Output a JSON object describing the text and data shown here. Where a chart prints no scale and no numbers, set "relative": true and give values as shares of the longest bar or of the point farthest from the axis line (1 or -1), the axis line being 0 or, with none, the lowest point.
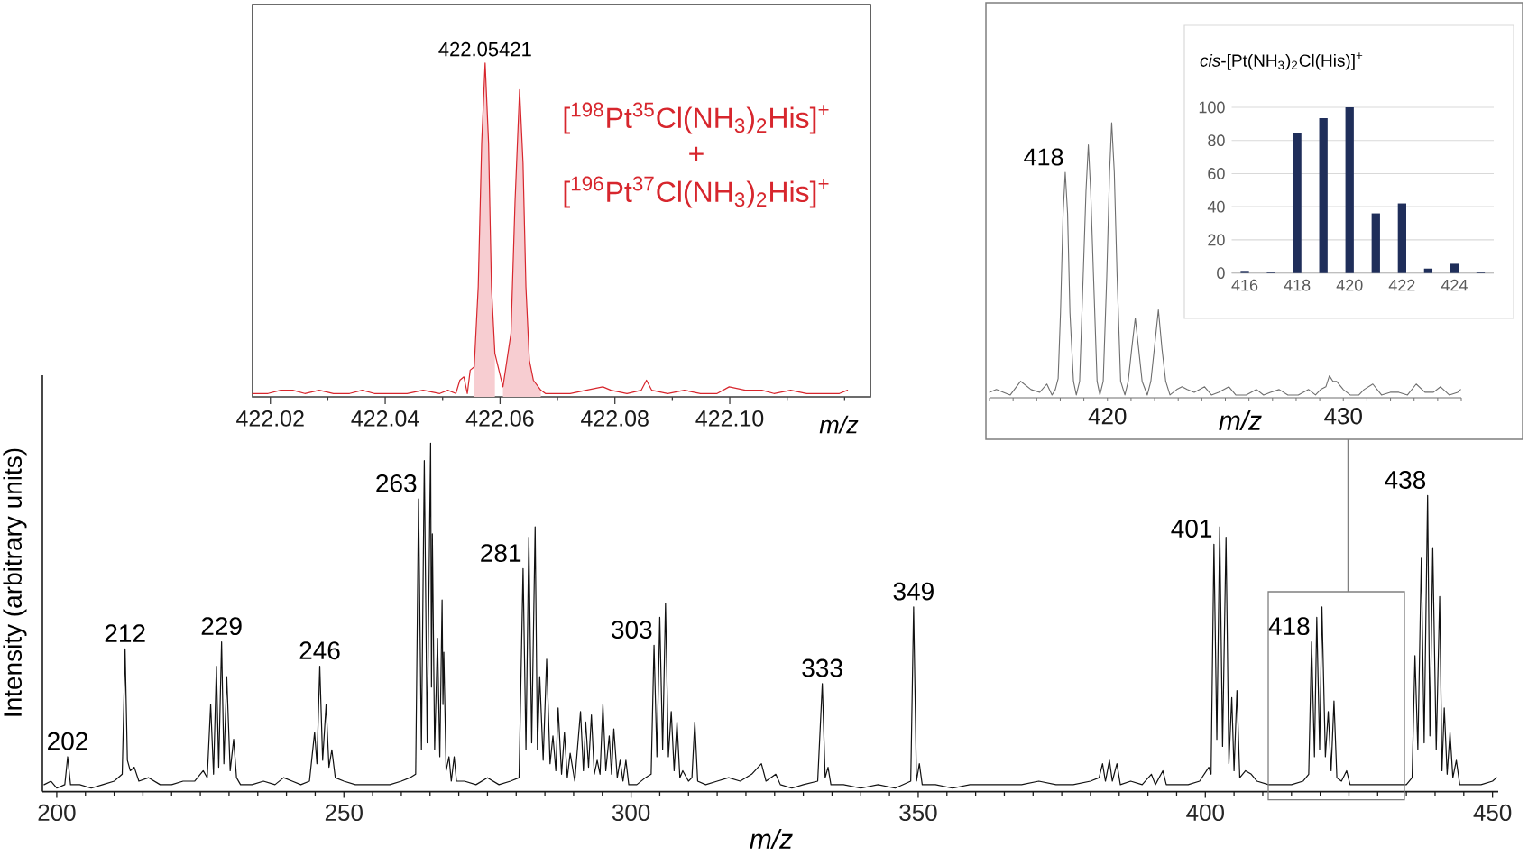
{
  "chart_data": [
    {
      "type": "line",
      "xlabel": "m/z",
      "ylabel": "Intensity (arbitrary units)",
      "relative": true,
      "xlim": [
        197.5,
        451
      ],
      "xticks": [
        200,
        {
          "value": 205,
          "label": null
        },
        {
          "value": 210,
          "label": null
        },
        {
          "value": 215,
          "label": null
        },
        {
          "value": 220,
          "label": null
        },
        {
          "value": 225,
          "label": null
        },
        {
          "value": 230,
          "label": null
        },
        {
          "value": 235,
          "label": null
        },
        {
          "value": 240,
          "label": null
        },
        {
          "value": 245,
          "label": null
        },
        250,
        {
          "value": 255,
          "label": null
        },
        {
          "value": 260,
          "label": null
        },
        {
          "value": 265,
          "label": null
        },
        {
          "value": 270,
          "label": null
        },
        {
          "value": 275,
          "label": null
        },
        {
          "value": 280,
          "label": null
        },
        {
          "value": 285,
          "label": null
        },
        {
          "value": 290,
          "label": null
        },
        {
          "value": 295,
          "label": null
        },
        300,
        {
          "value": 305,
          "label": null
        },
        {
          "value": 310,
          "label": null
        },
        {
          "value": 315,
          "label": null
        },
        {
          "value": 320,
          "label": null
        },
        {
          "value": 325,
          "label": null
        },
        {
          "value": 330,
          "label": null
        },
        {
          "value": 335,
          "label": null
        },
        {
          "value": 340,
          "label": null
        },
        {
          "value": 345,
          "label": null
        },
        350,
        {
          "value": 355,
          "label": null
        },
        {
          "value": 360,
          "label": null
        },
        {
          "value": 365,
          "label": null
        },
        {
          "value": 370,
          "label": null
        },
        {
          "value": 375,
          "label": null
        },
        {
          "value": 380,
          "label": null
        },
        {
          "value": 385,
          "label": null
        },
        {
          "value": 390,
          "label": null
        },
        {
          "value": 395,
          "label": null
        },
        400,
        {
          "value": 405,
          "label": null
        },
        {
          "value": 410,
          "label": null
        },
        {
          "value": 415,
          "label": null
        },
        {
          "value": 420,
          "label": null
        },
        {
          "value": 425,
          "label": null
        },
        {
          "value": 430,
          "label": null
        },
        {
          "value": 435,
          "label": null
        },
        {
          "value": 440,
          "label": null
        },
        {
          "value": 445,
          "label": null
        },
        450
      ],
      "series": [
        {
          "color": "#111111",
          "x": [
            197.8,
            199,
            200,
            201.4,
            201.9,
            202.4,
            204,
            206,
            208,
            210,
            211.4,
            211.9,
            212.3,
            212.8,
            213.5,
            214.3,
            216,
            218,
            220,
            222,
            224,
            225.5,
            226.2,
            226.8,
            227.3,
            227.8,
            228.2,
            228.7,
            229.1,
            229.6,
            230.2,
            230.8,
            231.3,
            232,
            234,
            236,
            238,
            239.5,
            241,
            242.5,
            244,
            244.9,
            245.3,
            245.8,
            246.3,
            246.9,
            247.4,
            247.9,
            248.5,
            250,
            252,
            254,
            256,
            258,
            260,
            261.5,
            262.5,
            263.0,
            263.5,
            264.0,
            264.5,
            265.1,
            265.25,
            265.4,
            265.8,
            266.3,
            266.7,
            267.1,
            267.25,
            267.4,
            267.8,
            268.3,
            268.7,
            269.2,
            269.6,
            271,
            273,
            275,
            277,
            279,
            280.5,
            281.2,
            281.7,
            282.2,
            282.7,
            283.3,
            283.7,
            284.1,
            284.7,
            285.3,
            285.9,
            286.4,
            286.9,
            287.3,
            287.9,
            288.4,
            288.9,
            289.4,
            290.2,
            291.2,
            291.7,
            292.1,
            292.6,
            293.1,
            293.6,
            294.1,
            294.6,
            295.1,
            295.6,
            296.2,
            296.6,
            297.0,
            297.6,
            298.1,
            298.6,
            299.1,
            299.6,
            301,
            302.5,
            303.5,
            304.0,
            304.5,
            305.0,
            305.5,
            306.0,
            306.5,
            307.0,
            307.5,
            308.0,
            308.5,
            309.0,
            310,
            310.6,
            311.1,
            311.6,
            313,
            315,
            317,
            319,
            321,
            322.7,
            323.5,
            325.2,
            326,
            328,
            330,
            332.5,
            333.3,
            333.8,
            334.3,
            334.8,
            337,
            340,
            343,
            346,
            348.7,
            349.2,
            349.7,
            350.2,
            350.7,
            353,
            356,
            359,
            362,
            365,
            368,
            371,
            374,
            377,
            380,
            381.5,
            382.1,
            382.6,
            383.3,
            383.8,
            384.6,
            385.2,
            387,
            389,
            390.6,
            391.3,
            392.6,
            393.2,
            395,
            397,
            399,
            400.6,
            401.0,
            401.5,
            402.0,
            402.5,
            403.0,
            403.6,
            404.1,
            404.6,
            405.0,
            405.5,
            406.0,
            407,
            408,
            409,
            411,
            413,
            415,
            417,
            418.0,
            418.5,
            419.0,
            419.4,
            419.9,
            420.3,
            420.9,
            421.4,
            421.9,
            422.4,
            422.9,
            423.7,
            424.6,
            425.2,
            427,
            429,
            431,
            433,
            435,
            436.0,
            436.5,
            437.0,
            437.6,
            438.1,
            438.7,
            439.1,
            439.6,
            440.2,
            440.8,
            441.2,
            441.6,
            442.1,
            442.6,
            443.1,
            443.7,
            444.3,
            446,
            448,
            450,
            450.7
          ],
          "values": [
            0.02,
            0.03,
            0.01,
            0.02,
            0.1,
            0.02,
            0.02,
            0.01,
            0.02,
            0.03,
            0.05,
            0.41,
            0.09,
            0.06,
            0.07,
            0.03,
            0.04,
            0.02,
            0.02,
            0.03,
            0.03,
            0.06,
            0.04,
            0.25,
            0.05,
            0.36,
            0.07,
            0.43,
            0.08,
            0.33,
            0.06,
            0.15,
            0.04,
            0.02,
            0.02,
            0.03,
            0.02,
            0.04,
            0.03,
            0.02,
            0.03,
            0.17,
            0.08,
            0.36,
            0.09,
            0.25,
            0.07,
            0.12,
            0.04,
            0.03,
            0.02,
            0.02,
            0.02,
            0.02,
            0.03,
            0.04,
            0.05,
            0.84,
            0.12,
            0.95,
            0.14,
            1.0,
            0.3,
            0.74,
            0.12,
            0.44,
            0.1,
            0.55,
            0.25,
            0.4,
            0.06,
            0.1,
            0.03,
            0.1,
            0.03,
            0.03,
            0.02,
            0.04,
            0.02,
            0.03,
            0.04,
            0.64,
            0.12,
            0.73,
            0.14,
            0.76,
            0.12,
            0.33,
            0.09,
            0.38,
            0.08,
            0.16,
            0.06,
            0.24,
            0.05,
            0.17,
            0.04,
            0.11,
            0.03,
            0.23,
            0.06,
            0.2,
            0.07,
            0.22,
            0.05,
            0.09,
            0.05,
            0.25,
            0.06,
            0.16,
            0.05,
            0.18,
            0.04,
            0.09,
            0.03,
            0.09,
            0.02,
            0.02,
            0.04,
            0.05,
            0.42,
            0.1,
            0.5,
            0.12,
            0.54,
            0.1,
            0.23,
            0.06,
            0.2,
            0.04,
            0.06,
            0.03,
            0.04,
            0.2,
            0.03,
            0.02,
            0.03,
            0.04,
            0.03,
            0.05,
            0.08,
            0.03,
            0.05,
            0.02,
            0.01,
            0.02,
            0.03,
            0.31,
            0.04,
            0.07,
            0.02,
            0.02,
            0.01,
            0.02,
            0.01,
            0.03,
            0.53,
            0.03,
            0.08,
            0.02,
            0.02,
            0.01,
            0.02,
            0.02,
            0.02,
            0.02,
            0.03,
            0.02,
            0.02,
            0.03,
            0.04,
            0.08,
            0.03,
            0.09,
            0.03,
            0.08,
            0.02,
            0.03,
            0.02,
            0.05,
            0.02,
            0.06,
            0.02,
            0.02,
            0.02,
            0.03,
            0.07,
            0.05,
            0.71,
            0.15,
            0.76,
            0.13,
            0.73,
            0.08,
            0.27,
            0.06,
            0.29,
            0.04,
            0.06,
            0.05,
            0.03,
            0.02,
            0.02,
            0.02,
            0.03,
            0.05,
            0.43,
            0.1,
            0.5,
            0.12,
            0.53,
            0.1,
            0.23,
            0.06,
            0.26,
            0.04,
            0.03,
            0.06,
            0.02,
            0.02,
            0.02,
            0.02,
            0.02,
            0.02,
            0.04,
            0.39,
            0.12,
            0.67,
            0.14,
            0.85,
            0.16,
            0.7,
            0.12,
            0.56,
            0.06,
            0.24,
            0.05,
            0.17,
            0.04,
            0.09,
            0.02,
            0.02,
            0.02,
            0.03,
            0.04
          ]
        }
      ],
      "annotations": [
        {
          "text": "202",
          "x": 201.9,
          "y": 0.1
        },
        {
          "text": "212",
          "x": 211.9,
          "y": 0.41
        },
        {
          "text": "229",
          "x": 228.7,
          "y": 0.43
        },
        {
          "text": "246",
          "x": 245.8,
          "y": 0.36
        },
        {
          "text": "263",
          "x": 263.0,
          "y": 0.84
        },
        {
          "text": "281",
          "x": 281.2,
          "y": 0.64
        },
        {
          "text": "303",
          "x": 304.0,
          "y": 0.42
        },
        {
          "text": "333",
          "x": 333.3,
          "y": 0.31
        },
        {
          "text": "349",
          "x": 349.2,
          "y": 0.53
        },
        {
          "text": "401",
          "x": 401.5,
          "y": 0.71
        },
        {
          "text": "418",
          "x": 418.5,
          "y": 0.43
        },
        {
          "text": "438",
          "x": 438.7,
          "y": 0.85
        }
      ]
    },
    {
      "type": "line",
      "xlabel": "m/z",
      "relative": true,
      "xlim": [
        422.0169,
        422.1245
      ],
      "xticks": [
        422.02,
        {
          "value": 422.03,
          "label": null
        },
        422.04,
        {
          "value": 422.05,
          "label": null
        },
        422.06,
        {
          "value": 422.07,
          "label": null
        },
        422.08,
        {
          "value": 422.09,
          "label": null
        },
        {
          "value": 422.1,
          "label": "422.10"
        },
        {
          "value": 422.11,
          "label": null
        },
        {
          "value": 422.12,
          "label": null
        }
      ],
      "series": [
        {
          "type": "line",
          "color": "#d7262d",
          "x": [
            422.0169,
            422.0196,
            422.0218,
            422.0239,
            422.026,
            422.0285,
            422.031,
            422.0338,
            422.036,
            422.0381,
            422.041,
            422.0438,
            422.0466,
            422.0495,
            422.0509,
            422.0523,
            422.053,
            422.0537,
            422.0543,
            422.0548,
            422.0555,
            422.0562,
            422.0568,
            422.0574,
            422.058,
            422.0585,
            422.0591,
            422.0598,
            422.0605,
            422.0612,
            422.0619,
            422.0626,
            422.0634,
            422.064,
            422.0645,
            422.0651,
            422.0658,
            422.0671,
            422.0679,
            422.0694,
            422.0722,
            422.075,
            422.0779,
            422.0793,
            422.0821,
            422.0846,
            422.0855,
            422.0864,
            422.0892,
            422.0921,
            422.0949,
            422.0978,
            422.0999,
            422.1027,
            422.1056,
            422.1077,
            422.1106,
            422.1134,
            422.1162,
            422.1191,
            422.1205
          ],
          "values": [
            0.01,
            0.01,
            0.02,
            0.02,
            0.01,
            0.02,
            0.01,
            0.01,
            0.02,
            0.01,
            0.01,
            0.01,
            0.02,
            0.01,
            0.02,
            0.01,
            0.05,
            0.06,
            0.01,
            0.08,
            0.09,
            0.33,
            0.76,
            1.0,
            0.76,
            0.33,
            0.13,
            0.08,
            0.03,
            0.11,
            0.19,
            0.58,
            0.92,
            0.7,
            0.33,
            0.11,
            0.05,
            0.02,
            0.01,
            0.01,
            0.01,
            0.02,
            0.03,
            0.02,
            0.01,
            0.02,
            0.05,
            0.02,
            0.01,
            0.02,
            0.01,
            0.01,
            0.03,
            0.02,
            0.02,
            0.01,
            0.02,
            0.01,
            0.01,
            0.01,
            0.02
          ]
        },
        {
          "type": "area",
          "color": "#f7cdd1",
          "x": [
            422.0555,
            422.0562,
            422.0568,
            422.0574,
            422.058,
            422.0585,
            422.0591
          ],
          "values": [
            0.09,
            0.33,
            0.76,
            1.0,
            0.76,
            0.33,
            0.13
          ]
        },
        {
          "type": "area",
          "color": "#f7cdd1",
          "x": [
            422.0605,
            422.0612,
            422.0619,
            422.0626,
            422.0634,
            422.064,
            422.0645,
            422.0651,
            422.0658,
            422.0671
          ],
          "values": [
            0.03,
            0.11,
            0.19,
            0.58,
            0.92,
            0.7,
            0.33,
            0.11,
            0.05,
            0.02
          ]
        }
      ],
      "annotations": [
        {
          "text": "422.05421",
          "x": 422.0574,
          "y": 1.0
        },
        "[$^{198}$Pt$^{35}$Cl(NH$_{3}$)$_{2}$His]$^{+}$",
        "+",
        "[$^{196}$Pt$^{37}$Cl(NH$_{3}$)$_{2}$His]$^{+}$"
      ]
    },
    {
      "type": "line",
      "xlabel": "m/z",
      "relative": true,
      "xlim": [
        415,
        435
      ],
      "xticks": [
        {
          "value": 415,
          "label": null
        },
        {
          "value": 416,
          "label": null
        },
        {
          "value": 417,
          "label": null
        },
        {
          "value": 418,
          "label": null
        },
        {
          "value": 419,
          "label": null
        },
        420,
        {
          "value": 421,
          "label": null
        },
        {
          "value": 422,
          "label": null
        },
        {
          "value": 423,
          "label": null
        },
        {
          "value": 424,
          "label": null
        },
        {
          "value": 425,
          "label": null
        },
        {
          "value": 426,
          "label": null
        },
        {
          "value": 427,
          "label": null
        },
        {
          "value": 428,
          "label": null
        },
        {
          "value": 429,
          "label": null
        },
        430,
        {
          "value": 431,
          "label": null
        },
        {
          "value": 432,
          "label": null
        },
        {
          "value": 433,
          "label": null
        },
        {
          "value": 434,
          "label": null
        },
        {
          "value": 435,
          "label": null
        }
      ],
      "series": [
        {
          "color": "#6e6e6e",
          "x": [
            415.0,
            415.29,
            415.59,
            415.88,
            416.32,
            416.76,
            417.13,
            417.43,
            417.65,
            417.79,
            417.91,
            418.01,
            418.12,
            418.21,
            418.31,
            418.41,
            418.56,
            418.68,
            418.82,
            418.97,
            419.09,
            419.19,
            419.29,
            419.41,
            419.56,
            419.68,
            419.82,
            419.97,
            420.09,
            420.18,
            420.29,
            420.41,
            420.56,
            420.74,
            420.88,
            421.03,
            421.18,
            421.32,
            421.47,
            421.69,
            421.84,
            421.99,
            422.16,
            422.31,
            422.47,
            422.65,
            422.94,
            423.16,
            423.38,
            423.68,
            424.12,
            424.41,
            424.71,
            425.15,
            425.44,
            425.88,
            426.32,
            426.62,
            426.91,
            427.28,
            427.65,
            428.09,
            428.53,
            428.82,
            429.04,
            429.26,
            429.41,
            429.56,
            429.71,
            430.0,
            430.29,
            430.66,
            430.88,
            431.25,
            431.62,
            431.99,
            432.35,
            432.72,
            433.09,
            433.46,
            433.82,
            434.12,
            434.49,
            434.85,
            434.97
          ],
          "values": [
            0.02,
            0.03,
            0.02,
            0.01,
            0.06,
            0.03,
            0.02,
            0.05,
            0.01,
            0.03,
            0.07,
            0.31,
            0.67,
            0.82,
            0.67,
            0.31,
            0.06,
            0.01,
            0.06,
            0.44,
            0.75,
            0.92,
            0.75,
            0.44,
            0.06,
            0.01,
            0.06,
            0.44,
            0.82,
            1.0,
            0.82,
            0.44,
            0.06,
            0.01,
            0.06,
            0.18,
            0.29,
            0.18,
            0.06,
            0.01,
            0.06,
            0.18,
            0.32,
            0.18,
            0.06,
            0.01,
            0.03,
            0.04,
            0.03,
            0.02,
            0.04,
            0.01,
            0.02,
            0.04,
            0.01,
            0.01,
            0.03,
            0.01,
            0.02,
            0.03,
            0.01,
            0.01,
            0.03,
            0.01,
            0.03,
            0.04,
            0.08,
            0.06,
            0.06,
            0.03,
            0.01,
            0.01,
            0.03,
            0.05,
            0.01,
            0.02,
            0.02,
            0.01,
            0.05,
            0.02,
            0.02,
            0.04,
            0.01,
            0.02,
            0.03
          ]
        }
      ],
      "annotations": [
        {
          "text": "418",
          "x": 418.21,
          "y": 0.82
        }
      ]
    },
    {
      "type": "bar",
      "title": "*cis*-[Pt(NH$_{3}$)$_{2}$Cl(His)]$^{+}$",
      "categories": [
        "416",
        null,
        "418",
        null,
        "420",
        null,
        "422",
        null,
        "424",
        null
      ],
      "values": [
        1.3,
        0.5,
        84.5,
        93.5,
        100,
        36,
        42,
        2.7,
        5.6,
        0.5
      ],
      "color": "#1f2e5a",
      "ylim": [
        0,
        100
      ],
      "yticks": [
        0,
        20,
        40,
        60,
        80,
        100
      ],
      "grid": "y"
    }
  ]
}
